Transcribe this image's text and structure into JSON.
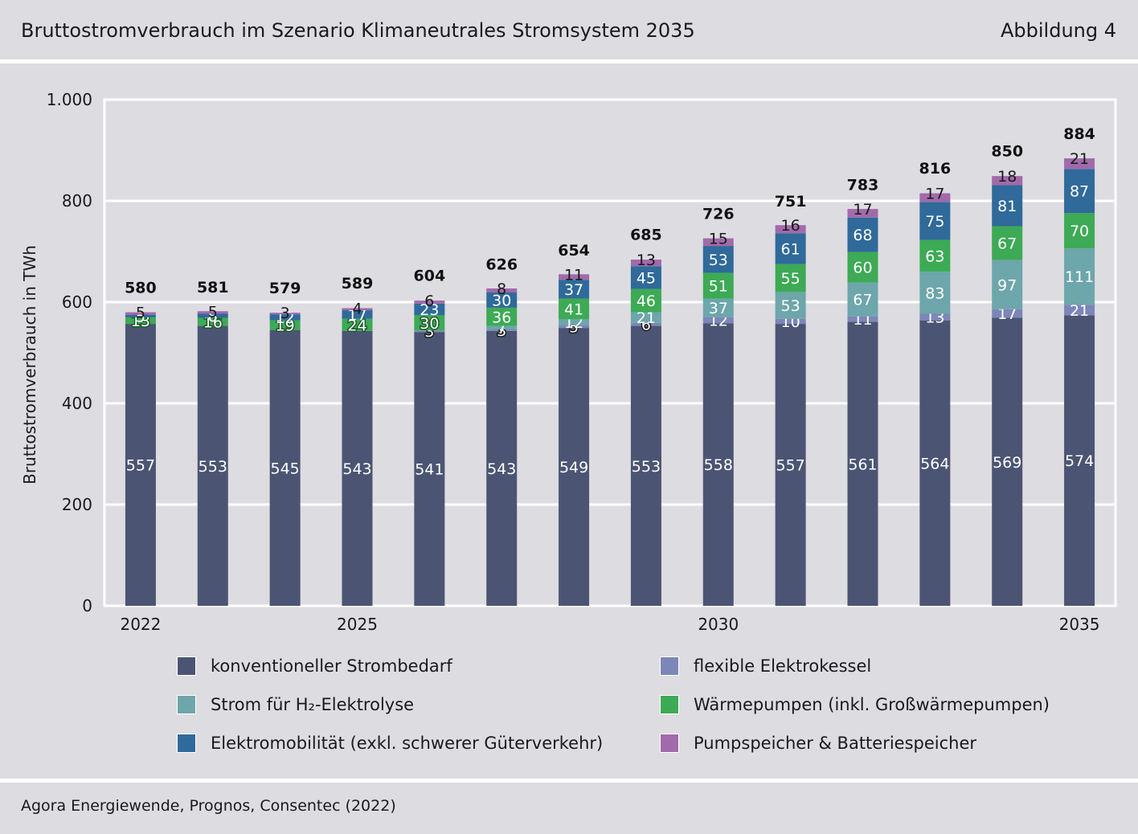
{
  "header": {
    "title": "Bruttostromverbrauch im Szenario Klimaneutrales Stromsystem 2035",
    "figure_label": "Abbildung 4"
  },
  "source": "Agora Energiewende, Prognos, Consentec (2022)",
  "chart_data": {
    "type": "bar",
    "stacked": true,
    "title": "Bruttostromverbrauch im Szenario Klimaneutrales Stromsystem 2035",
    "ylabel": "Bruttostromverbrauch in TWh",
    "xlabel": "",
    "ylim": [
      0,
      1000
    ],
    "yticks": [
      0,
      200,
      400,
      600,
      800,
      1000
    ],
    "ytick_labels": [
      "0",
      "200",
      "400",
      "600",
      "800",
      "1.000"
    ],
    "grid": true,
    "legend_position": "bottom",
    "categories": [
      "2022",
      "2023",
      "2024",
      "2025",
      "2026",
      "2027",
      "2028",
      "2029",
      "2030",
      "2031",
      "2032",
      "2033",
      "2034",
      "2035"
    ],
    "xtick_labels": [
      "2022",
      "",
      "",
      "2025",
      "",
      "",
      "",
      "",
      "2030",
      "",
      "",
      "",
      "",
      "2035"
    ],
    "totals": [
      580,
      581,
      579,
      589,
      604,
      626,
      654,
      685,
      726,
      751,
      783,
      816,
      850,
      884
    ],
    "series": [
      {
        "name": "konventioneller Strombedarf",
        "color": "#4b5573",
        "values": [
          557,
          553,
          545,
          543,
          541,
          543,
          549,
          553,
          558,
          557,
          561,
          564,
          569,
          574
        ]
      },
      {
        "name": "flexible Elektrokessel",
        "color": "#7d86b8",
        "values": [
          0,
          0,
          0,
          0,
          3,
          3,
          5,
          6,
          12,
          10,
          11,
          13,
          17,
          21
        ]
      },
      {
        "name": "Strom für H₂-Elektrolyse",
        "color": "#6da6ab",
        "values": [
          0,
          0,
          0,
          0,
          0,
          7,
          12,
          21,
          37,
          53,
          67,
          83,
          97,
          111
        ]
      },
      {
        "name": "Wärmepumpen (inkl. Großwärmepumpen)",
        "color": "#3daa55",
        "values": [
          13,
          16,
          19,
          24,
          30,
          36,
          41,
          46,
          51,
          55,
          60,
          63,
          67,
          70
        ]
      },
      {
        "name": "Elektromobilität (exkl. schwerer Güterverkehr)",
        "color": "#2f6a9a",
        "values": [
          5,
          8,
          12,
          17,
          23,
          30,
          37,
          45,
          53,
          61,
          68,
          75,
          81,
          87
        ]
      },
      {
        "name": "Pumpspeicher & Batteriespeicher",
        "color": "#a16aaa",
        "values": [
          5,
          5,
          3,
          4,
          6,
          8,
          11,
          13,
          15,
          16,
          17,
          17,
          18,
          21
        ]
      }
    ],
    "segment_labels": [
      [
        "557",
        "553",
        "545",
        "543",
        "541",
        "543",
        "549",
        "553",
        "558",
        "557",
        "561",
        "564",
        "569",
        "574"
      ],
      [
        "",
        "",
        "",
        "",
        "3",
        "3",
        "5",
        "6",
        "12",
        "10",
        "11",
        "13",
        "17",
        "21"
      ],
      [
        "",
        "",
        "",
        "",
        "",
        "7",
        "12",
        "21",
        "37",
        "53",
        "67",
        "83",
        "97",
        "111"
      ],
      [
        "13",
        "16",
        "19",
        "24",
        "30",
        "36",
        "41",
        "46",
        "51",
        "55",
        "60",
        "63",
        "67",
        "70"
      ],
      [
        "5",
        "8",
        "12",
        "17",
        "23",
        "30",
        "37",
        "45",
        "53",
        "61",
        "68",
        "75",
        "81",
        "87"
      ],
      [
        "5",
        "5",
        "3",
        "4",
        "6",
        "8",
        "11",
        "13",
        "15",
        "16",
        "17",
        "17",
        "18",
        "21"
      ]
    ]
  },
  "legend": {
    "items": [
      {
        "label": "konventioneller Strombedarf",
        "color": "#4b5573"
      },
      {
        "label": "flexible Elektrokessel",
        "color": "#7d86b8"
      },
      {
        "label": "Strom für H₂-Elektrolyse",
        "color": "#6da6ab"
      },
      {
        "label": "Wärmepumpen (inkl. Großwärmepumpen)",
        "color": "#3daa55"
      },
      {
        "label": "Elektromobilität (exkl. schwerer Güterverkehr)",
        "color": "#2f6a9a"
      },
      {
        "label": "Pumpspeicher & Batteriespeicher",
        "color": "#a16aaa"
      }
    ]
  }
}
